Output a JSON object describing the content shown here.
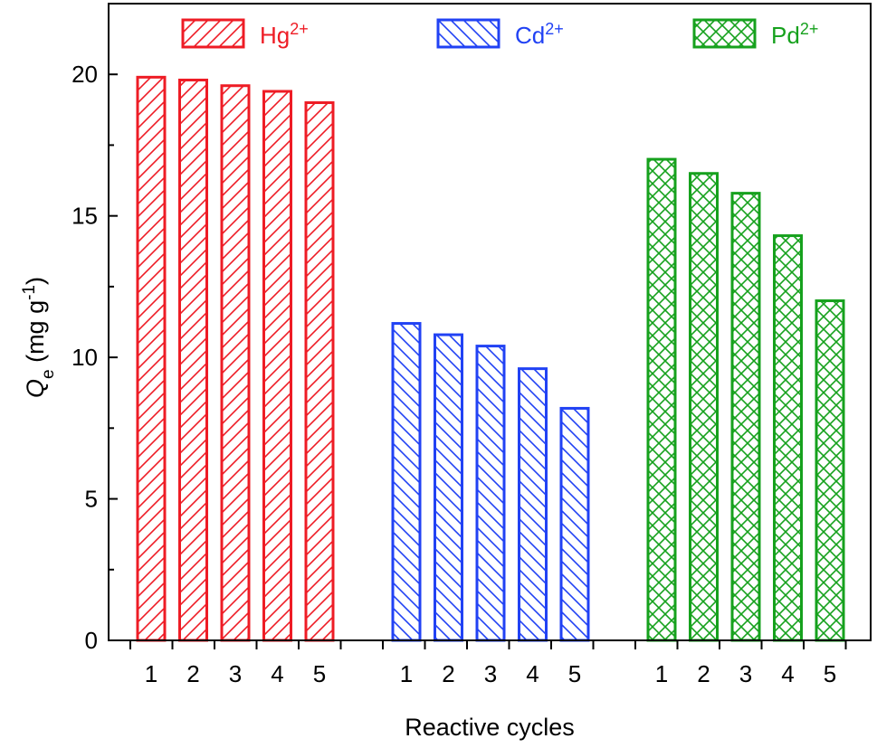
{
  "chart_data": {
    "type": "bar",
    "xlabel": "Reactive cycles",
    "ylabel_main": "Q",
    "ylabel_sub": "e",
    "ylabel_unit": " (mg g",
    "ylabel_unit_sup": "-1",
    "ylabel_close": ")",
    "ylim": [
      0,
      22.5
    ],
    "yticks": [
      0,
      5,
      10,
      15,
      20
    ],
    "ytick_labels": [
      "0",
      "5",
      "10",
      "15",
      "20"
    ],
    "legend_placement": "top",
    "groups": [
      {
        "name": "Hg",
        "name_sup": "2+",
        "color": "#ee1c25",
        "pattern": "diagonal-up",
        "categories": [
          "1",
          "2",
          "3",
          "4",
          "5"
        ],
        "values": [
          19.9,
          19.8,
          19.6,
          19.4,
          19.0
        ]
      },
      {
        "name": "Cd",
        "name_sup": "2+",
        "color": "#2142f4",
        "pattern": "diagonal-down",
        "categories": [
          "1",
          "2",
          "3",
          "4",
          "5"
        ],
        "values": [
          11.2,
          10.8,
          10.4,
          9.6,
          8.2
        ]
      },
      {
        "name": "Pd",
        "name_sup": "2+",
        "color": "#16a11d",
        "pattern": "crosshatch",
        "categories": [
          "1",
          "2",
          "3",
          "4",
          "5"
        ],
        "values": [
          17.0,
          16.5,
          15.8,
          14.3,
          12.0
        ]
      }
    ]
  }
}
